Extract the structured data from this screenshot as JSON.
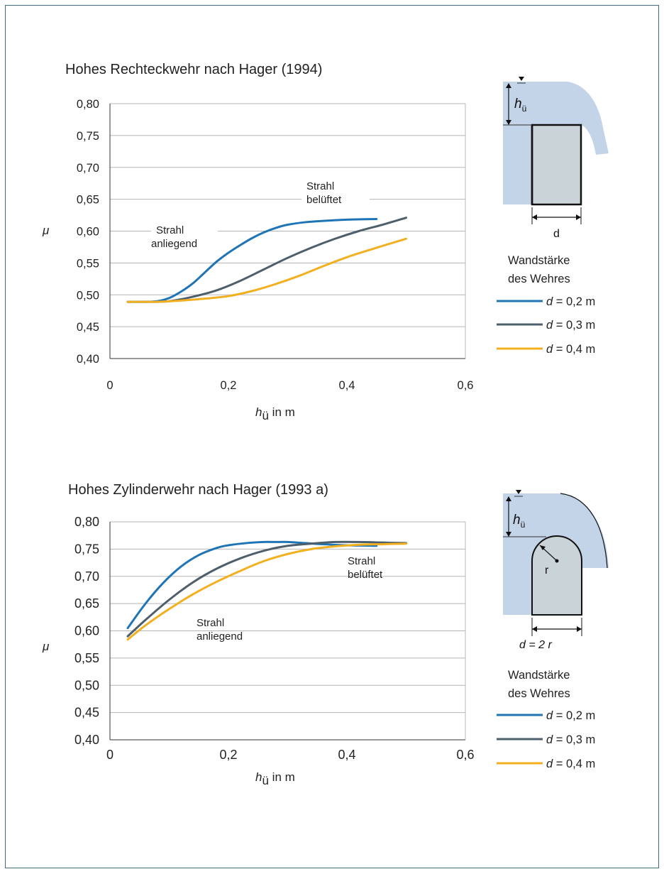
{
  "colors": {
    "d02": "#1f74b6",
    "d03": "#4d5f6b",
    "d04": "#f2b020",
    "water": "#c3d3e8",
    "weir": "#c9d3d8",
    "grid": "#b5b5b5"
  },
  "charts": [
    {
      "title": "Hohes Rechteckwehr nach Hager (1994)",
      "ylabel": "μ",
      "xlabel_main": "h",
      "xlabel_sub": "ü",
      "xlabel_rest": " in m",
      "xticks": [
        "0",
        "0,2",
        "0,4",
        "0,6"
      ],
      "yticks": [
        "0,40",
        "0,45",
        "0,50",
        "0,55",
        "0,60",
        "0,65",
        "0,70",
        "0,75",
        "0,80"
      ],
      "annot_anliegend": [
        "Strahl",
        "anliegend"
      ],
      "annot_belueftet": [
        "Strahl",
        "belüftet"
      ],
      "schematic": {
        "h_main": "h",
        "h_sub": "ü",
        "dim_label": "d"
      },
      "legend_title": [
        "Wandstärke",
        "des Wehres"
      ],
      "legend": [
        {
          "var": "d",
          "text": " = 0,2 m"
        },
        {
          "var": "d",
          "text": " = 0,3 m"
        },
        {
          "var": "d",
          "text": " = 0,4 m"
        }
      ]
    },
    {
      "title": "Hohes Zylinderwehr nach Hager (1993 a)",
      "ylabel": "μ",
      "xlabel_main": "h",
      "xlabel_sub": "ü",
      "xlabel_rest": " in m",
      "xticks": [
        "0",
        "0,2",
        "0,4",
        "0,6"
      ],
      "yticks": [
        "0,40",
        "0,45",
        "0,50",
        "0,55",
        "0,60",
        "0,65",
        "0,70",
        "0,75",
        "0,80"
      ],
      "annot_anliegend": [
        "Strahl",
        "anliegend"
      ],
      "annot_belueftet": [
        "Strahl",
        "belüftet"
      ],
      "schematic": {
        "h_main": "h",
        "h_sub": "ü",
        "r_label": "r",
        "dim_label_pre": "d = 2 ",
        "dim_label_r": "r"
      },
      "legend_title": [
        "Wandstärke",
        "des Wehres"
      ],
      "legend": [
        {
          "var": "d",
          "text": " = 0,2 m"
        },
        {
          "var": "d",
          "text": " = 0,3 m"
        },
        {
          "var": "d",
          "text": " = 0,4 m"
        }
      ]
    }
  ],
  "chart_data": [
    {
      "type": "line",
      "title": "Hohes Rechteckwehr nach Hager (1994)",
      "xlabel": "hü in m",
      "ylabel": "μ",
      "xlim": [
        0,
        0.6
      ],
      "ylim": [
        0.4,
        0.8
      ],
      "grid": "horizontal",
      "legend_placement": "right",
      "series": [
        {
          "name": "d = 0,2 m",
          "color": "#1f74b6",
          "x": [
            0.03,
            0.06,
            0.08,
            0.1,
            0.12,
            0.14,
            0.16,
            0.18,
            0.2,
            0.22,
            0.24,
            0.26,
            0.28,
            0.3,
            0.33,
            0.36,
            0.4,
            0.45
          ],
          "y": [
            0.489,
            0.489,
            0.49,
            0.495,
            0.505,
            0.518,
            0.535,
            0.552,
            0.566,
            0.578,
            0.589,
            0.598,
            0.605,
            0.61,
            0.614,
            0.616,
            0.618,
            0.619
          ]
        },
        {
          "name": "d = 0,3 m",
          "color": "#4d5f6b",
          "x": [
            0.03,
            0.06,
            0.1,
            0.14,
            0.18,
            0.22,
            0.26,
            0.3,
            0.34,
            0.38,
            0.42,
            0.46,
            0.5
          ],
          "y": [
            0.489,
            0.489,
            0.49,
            0.497,
            0.507,
            0.522,
            0.54,
            0.558,
            0.574,
            0.588,
            0.6,
            0.61,
            0.621
          ]
        },
        {
          "name": "d = 0,4 m",
          "color": "#f2b020",
          "x": [
            0.03,
            0.08,
            0.12,
            0.16,
            0.2,
            0.24,
            0.28,
            0.32,
            0.36,
            0.4,
            0.44,
            0.5
          ],
          "y": [
            0.489,
            0.489,
            0.491,
            0.494,
            0.498,
            0.506,
            0.517,
            0.53,
            0.545,
            0.559,
            0.571,
            0.588
          ]
        }
      ],
      "annotations": [
        {
          "text": "Strahl anliegend",
          "x": 0.09,
          "y": 0.595
        },
        {
          "text": "Strahl belüftet",
          "x": 0.34,
          "y": 0.645
        }
      ]
    },
    {
      "type": "line",
      "title": "Hohes Zylinderwehr nach Hager (1993 a)",
      "xlabel": "hü in m",
      "ylabel": "μ",
      "xlim": [
        0,
        0.6
      ],
      "ylim": [
        0.4,
        0.8
      ],
      "grid": "horizontal",
      "legend_placement": "right",
      "series": [
        {
          "name": "d = 0,2 m",
          "color": "#1f74b6",
          "x": [
            0.03,
            0.06,
            0.09,
            0.12,
            0.15,
            0.18,
            0.2,
            0.23,
            0.26,
            0.28,
            0.3,
            0.33,
            0.36,
            0.4,
            0.45
          ],
          "y": [
            0.605,
            0.65,
            0.688,
            0.718,
            0.739,
            0.752,
            0.757,
            0.761,
            0.763,
            0.763,
            0.763,
            0.761,
            0.759,
            0.757,
            0.756
          ]
        },
        {
          "name": "d = 0,3 m",
          "color": "#4d5f6b",
          "x": [
            0.03,
            0.06,
            0.1,
            0.14,
            0.18,
            0.22,
            0.26,
            0.3,
            0.34,
            0.38,
            0.42,
            0.46,
            0.5
          ],
          "y": [
            0.59,
            0.62,
            0.657,
            0.689,
            0.714,
            0.733,
            0.747,
            0.756,
            0.76,
            0.763,
            0.763,
            0.762,
            0.761
          ]
        },
        {
          "name": "d = 0,4 m",
          "color": "#f2b020",
          "x": [
            0.03,
            0.06,
            0.1,
            0.14,
            0.18,
            0.22,
            0.26,
            0.3,
            0.34,
            0.38,
            0.42,
            0.46,
            0.5
          ],
          "y": [
            0.584,
            0.61,
            0.64,
            0.667,
            0.69,
            0.71,
            0.728,
            0.741,
            0.75,
            0.755,
            0.758,
            0.759,
            0.76
          ]
        }
      ],
      "annotations": [
        {
          "text": "Strahl anliegend",
          "x": 0.14,
          "y": 0.665
        },
        {
          "text": "Strahl belüftet",
          "x": 0.39,
          "y": 0.735
        }
      ]
    }
  ]
}
